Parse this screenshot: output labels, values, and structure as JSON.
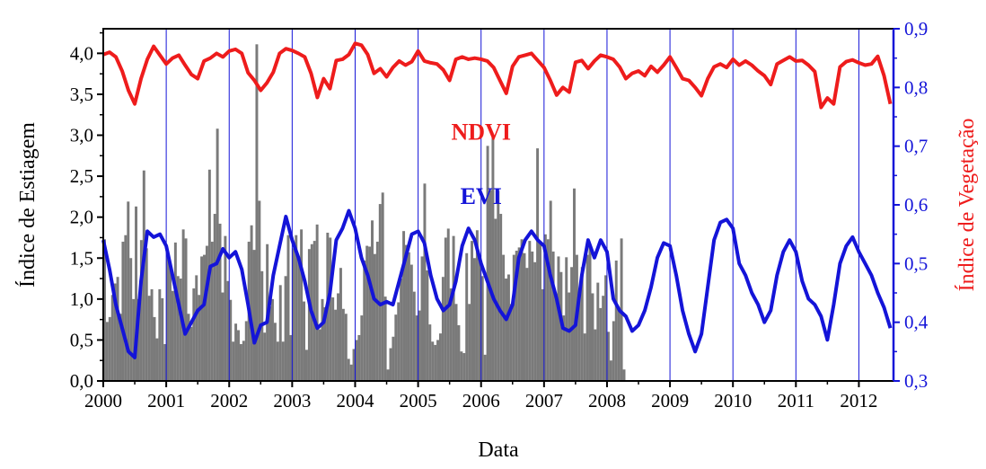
{
  "chart_data": {
    "type": "bar+line",
    "xlabel": "Data",
    "ylabel_left": "Índice de Estiagem",
    "ylabel_right": "Índice de Vegetação",
    "xlim": [
      2000,
      2012.55
    ],
    "ylim_left": [
      0,
      4.3
    ],
    "ylim_right": [
      0.3,
      0.9
    ],
    "x_ticks": [
      "2000",
      "2001",
      "2002",
      "2003",
      "2004",
      "2005",
      "2006",
      "2007",
      "2008",
      "2009",
      "2010",
      "2011",
      "2012"
    ],
    "y_ticks_left": [
      "0,0",
      "0,5",
      "1,0",
      "1,5",
      "2,0",
      "2,5",
      "3,0",
      "3,5",
      "4,0"
    ],
    "y_ticks_right": [
      "0,3",
      "0,4",
      "0,5",
      "0,6",
      "0,7",
      "0,8",
      "0,9"
    ],
    "colors": {
      "bars": "#7a7a7a",
      "ndvi": "#ee1c1c",
      "evi": "#1414d8",
      "left_axis": "#000000",
      "right_axis": "#1414d8",
      "right_title": "#ee1c1c"
    },
    "bar_width_years": 0.042,
    "drought_index": {
      "name": "Índice de Estiagem",
      "axis": "left",
      "x_start": 2000.0,
      "x_step": 0.04167,
      "values": [
        1.73,
        0.72,
        0.78,
        1.05,
        1.19,
        1.27,
        0.82,
        1.7,
        1.78,
        2.19,
        1.5,
        1.0,
        2.13,
        1.0,
        1.72,
        2.57,
        1.62,
        1.04,
        1.12,
        0.78,
        0.52,
        1.12,
        1.01,
        0.45,
        1.53,
        1.4,
        1.1,
        1.69,
        1.28,
        1.25,
        1.85,
        1.74,
        0.82,
        0.66,
        1.13,
        1.29,
        1.05,
        1.52,
        1.54,
        1.65,
        2.58,
        1.7,
        2.04,
        3.08,
        1.92,
        1.08,
        1.77,
        1.22,
        0.99,
        0.48,
        0.7,
        0.62,
        0.45,
        0.49,
        0.73,
        1.7,
        1.9,
        1.6,
        4.11,
        2.2,
        1.34,
        0.59,
        1.67,
        0.91,
        1.0,
        0.71,
        0.48,
        1.17,
        0.48,
        1.28,
        1.78,
        0.56,
        1.62,
        1.78,
        1.48,
        1.85,
        0.97,
        0.38,
        1.61,
        1.67,
        1.71,
        1.91,
        0.63,
        1.0,
        0.9,
        1.81,
        1.75,
        1.02,
        0.87,
        1.07,
        1.38,
        0.88,
        0.82,
        0.27,
        0.2,
        0.39,
        0.5,
        0.56,
        0.8,
        1.47,
        1.65,
        1.64,
        1.96,
        1.55,
        1.7,
        2.16,
        2.3,
        1.03,
        0.14,
        0.4,
        0.54,
        0.81,
        0.96,
        1.25,
        1.83,
        1.66,
        1.57,
        1.42,
        1.09,
        0.8,
        0.86,
        1.52,
        2.41,
        1.35,
        0.69,
        0.48,
        0.44,
        0.5,
        0.58,
        1.27,
        1.75,
        1.86,
        1.13,
        1.77,
        0.94,
        0.68,
        0.36,
        0.34,
        1.56,
        0.94,
        1.71,
        1.5,
        1.84,
        1.48,
        1.28,
        0.32,
        2.87,
        2.33,
        2.98,
        1.98,
        2.32,
        2.04,
        1.54,
        1.25,
        1.3,
        0.94,
        1.54,
        1.59,
        1.63,
        1.73,
        1.56,
        1.38,
        1.71,
        1.58,
        1.45,
        2.84,
        1.7,
        1.12,
        1.79,
        1.73,
        2.2,
        1.58,
        1.03,
        1.52,
        1.33,
        0.8,
        1.51,
        1.08,
        1.39,
        2.35,
        1.54,
        1.06,
        1.39,
        0.58,
        1.54,
        1.63,
        1.07,
        0.63,
        1.2,
        0.89,
        1.04,
        1.29,
        0.6,
        0.25,
        0.73,
        1.47,
        0.87,
        1.74,
        0.14
      ],
      "x_end": 2012.52
    },
    "series": [
      {
        "name": "NDVI",
        "axis": "right",
        "x": [
          2000.0,
          2000.1,
          2000.2,
          2000.3,
          2000.4,
          2000.5,
          2000.6,
          2000.7,
          2000.8,
          2000.9,
          2001.0,
          2001.1,
          2001.2,
          2001.3,
          2001.4,
          2001.5,
          2001.6,
          2001.7,
          2001.8,
          2001.9,
          2002.0,
          2002.1,
          2002.2,
          2002.3,
          2002.4,
          2002.5,
          2002.6,
          2002.7,
          2002.8,
          2002.9,
          2003.0,
          2003.1,
          2003.2,
          2003.3,
          2003.4,
          2003.5,
          2003.6,
          2003.7,
          2003.8,
          2003.9,
          2004.0,
          2004.1,
          2004.2,
          2004.3,
          2004.4,
          2004.5,
          2004.6,
          2004.7,
          2004.8,
          2004.9,
          2005.0,
          2005.1,
          2005.2,
          2005.3,
          2005.4,
          2005.5,
          2005.6,
          2005.7,
          2005.8,
          2005.9,
          2006.0,
          2006.1,
          2006.2,
          2006.3,
          2006.4,
          2006.5,
          2006.6,
          2006.7,
          2006.8,
          2006.9,
          2007.0,
          2007.1,
          2007.2,
          2007.3,
          2007.4,
          2007.5,
          2007.6,
          2007.7,
          2007.8,
          2007.9,
          2008.0,
          2008.1,
          2008.2,
          2008.3,
          2008.4,
          2008.5,
          2008.6,
          2008.7,
          2008.8,
          2008.9,
          2009.0,
          2009.1,
          2009.2,
          2009.3,
          2009.4,
          2009.5,
          2009.6,
          2009.7,
          2009.8,
          2009.9,
          2010.0,
          2010.1,
          2010.2,
          2010.3,
          2010.4,
          2010.5,
          2010.6,
          2010.7,
          2010.8,
          2010.9,
          2011.0,
          2011.1,
          2011.2,
          2011.3,
          2011.4,
          2011.5,
          2011.6,
          2011.7,
          2011.8,
          2011.9,
          2012.0,
          2012.1,
          2012.2,
          2012.3,
          2012.4,
          2012.5
        ],
        "values": [
          0.856,
          0.86,
          0.852,
          0.828,
          0.795,
          0.772,
          0.815,
          0.848,
          0.87,
          0.855,
          0.84,
          0.85,
          0.855,
          0.838,
          0.822,
          0.815,
          0.845,
          0.85,
          0.858,
          0.852,
          0.862,
          0.865,
          0.858,
          0.825,
          0.812,
          0.795,
          0.808,
          0.826,
          0.858,
          0.866,
          0.863,
          0.858,
          0.852,
          0.824,
          0.783,
          0.815,
          0.798,
          0.846,
          0.848,
          0.856,
          0.875,
          0.872,
          0.856,
          0.824,
          0.832,
          0.818,
          0.834,
          0.845,
          0.838,
          0.844,
          0.862,
          0.845,
          0.842,
          0.84,
          0.83,
          0.812,
          0.848,
          0.852,
          0.848,
          0.85,
          0.848,
          0.845,
          0.834,
          0.812,
          0.79,
          0.836,
          0.852,
          0.855,
          0.858,
          0.846,
          0.834,
          0.812,
          0.787,
          0.8,
          0.792,
          0.843,
          0.846,
          0.832,
          0.845,
          0.855,
          0.852,
          0.848,
          0.835,
          0.815,
          0.824,
          0.828,
          0.82,
          0.836,
          0.826,
          0.838,
          0.852,
          0.834,
          0.815,
          0.812,
          0.8,
          0.786,
          0.815,
          0.835,
          0.84,
          0.834,
          0.848,
          0.838,
          0.845,
          0.838,
          0.828,
          0.82,
          0.805,
          0.84,
          0.846,
          0.852,
          0.845,
          0.846,
          0.838,
          0.827,
          0.766,
          0.782,
          0.772,
          0.835,
          0.844,
          0.847,
          0.842,
          0.838,
          0.84,
          0.853,
          0.82,
          0.772
        ]
      },
      {
        "name": "EVI",
        "axis": "right",
        "x": [
          2000.0,
          2000.1,
          2000.2,
          2000.3,
          2000.4,
          2000.5,
          2000.6,
          2000.7,
          2000.8,
          2000.9,
          2001.0,
          2001.1,
          2001.2,
          2001.3,
          2001.4,
          2001.5,
          2001.6,
          2001.7,
          2001.8,
          2001.9,
          2002.0,
          2002.1,
          2002.2,
          2002.3,
          2002.4,
          2002.5,
          2002.6,
          2002.7,
          2002.8,
          2002.9,
          2003.0,
          2003.1,
          2003.2,
          2003.3,
          2003.4,
          2003.5,
          2003.6,
          2003.7,
          2003.8,
          2003.9,
          2004.0,
          2004.1,
          2004.2,
          2004.3,
          2004.4,
          2004.5,
          2004.6,
          2004.7,
          2004.8,
          2004.9,
          2005.0,
          2005.1,
          2005.2,
          2005.3,
          2005.4,
          2005.5,
          2005.6,
          2005.7,
          2005.8,
          2005.9,
          2006.0,
          2006.1,
          2006.2,
          2006.3,
          2006.4,
          2006.5,
          2006.6,
          2006.7,
          2006.8,
          2006.9,
          2007.0,
          2007.1,
          2007.2,
          2007.3,
          2007.4,
          2007.5,
          2007.6,
          2007.7,
          2007.8,
          2007.9,
          2008.0,
          2008.1,
          2008.2,
          2008.3,
          2008.4,
          2008.5,
          2008.6,
          2008.7,
          2008.8,
          2008.9,
          2009.0,
          2009.1,
          2009.2,
          2009.3,
          2009.4,
          2009.5,
          2009.6,
          2009.7,
          2009.8,
          2009.9,
          2010.0,
          2010.1,
          2010.2,
          2010.3,
          2010.4,
          2010.5,
          2010.6,
          2010.7,
          2010.8,
          2010.9,
          2011.0,
          2011.1,
          2011.2,
          2011.3,
          2011.4,
          2011.5,
          2011.6,
          2011.7,
          2011.8,
          2011.9,
          2012.0,
          2012.1,
          2012.2,
          2012.3,
          2012.4,
          2012.5
        ],
        "values": [
          0.54,
          0.49,
          0.43,
          0.39,
          0.35,
          0.34,
          0.47,
          0.555,
          0.545,
          0.55,
          0.53,
          0.48,
          0.43,
          0.38,
          0.4,
          0.42,
          0.43,
          0.495,
          0.5,
          0.525,
          0.51,
          0.52,
          0.49,
          0.43,
          0.365,
          0.395,
          0.4,
          0.48,
          0.53,
          0.58,
          0.54,
          0.51,
          0.47,
          0.42,
          0.39,
          0.4,
          0.45,
          0.54,
          0.56,
          0.59,
          0.56,
          0.51,
          0.48,
          0.44,
          0.43,
          0.435,
          0.43,
          0.47,
          0.51,
          0.55,
          0.555,
          0.535,
          0.48,
          0.44,
          0.42,
          0.43,
          0.47,
          0.53,
          0.56,
          0.54,
          0.5,
          0.47,
          0.44,
          0.42,
          0.405,
          0.43,
          0.51,
          0.54,
          0.555,
          0.54,
          0.53,
          0.48,
          0.44,
          0.39,
          0.385,
          0.395,
          0.48,
          0.54,
          0.51,
          0.54,
          0.52,
          0.44,
          0.42,
          0.41,
          0.385,
          0.395,
          0.42,
          0.46,
          0.51,
          0.535,
          0.53,
          0.48,
          0.42,
          0.38,
          0.35,
          0.38,
          0.46,
          0.54,
          0.57,
          0.575,
          0.56,
          0.5,
          0.48,
          0.45,
          0.43,
          0.4,
          0.42,
          0.48,
          0.52,
          0.54,
          0.52,
          0.47,
          0.44,
          0.43,
          0.41,
          0.37,
          0.43,
          0.5,
          0.53,
          0.545,
          0.52,
          0.5,
          0.48,
          0.45,
          0.425,
          0.39
        ]
      }
    ],
    "annotations": [
      {
        "text": "NDVI",
        "color": "#ee1c1c",
        "at_x": 2006.0,
        "at_y_right": 0.725
      },
      {
        "text": "EVI",
        "color": "#1414d8",
        "at_x": 2006.0,
        "at_y_right": 0.615
      }
    ],
    "year_gridlines": {
      "color": "#1414d8",
      "years": [
        2001,
        2002,
        2003,
        2004,
        2005,
        2006,
        2007,
        2008,
        2009,
        2010,
        2011,
        2012
      ]
    }
  }
}
